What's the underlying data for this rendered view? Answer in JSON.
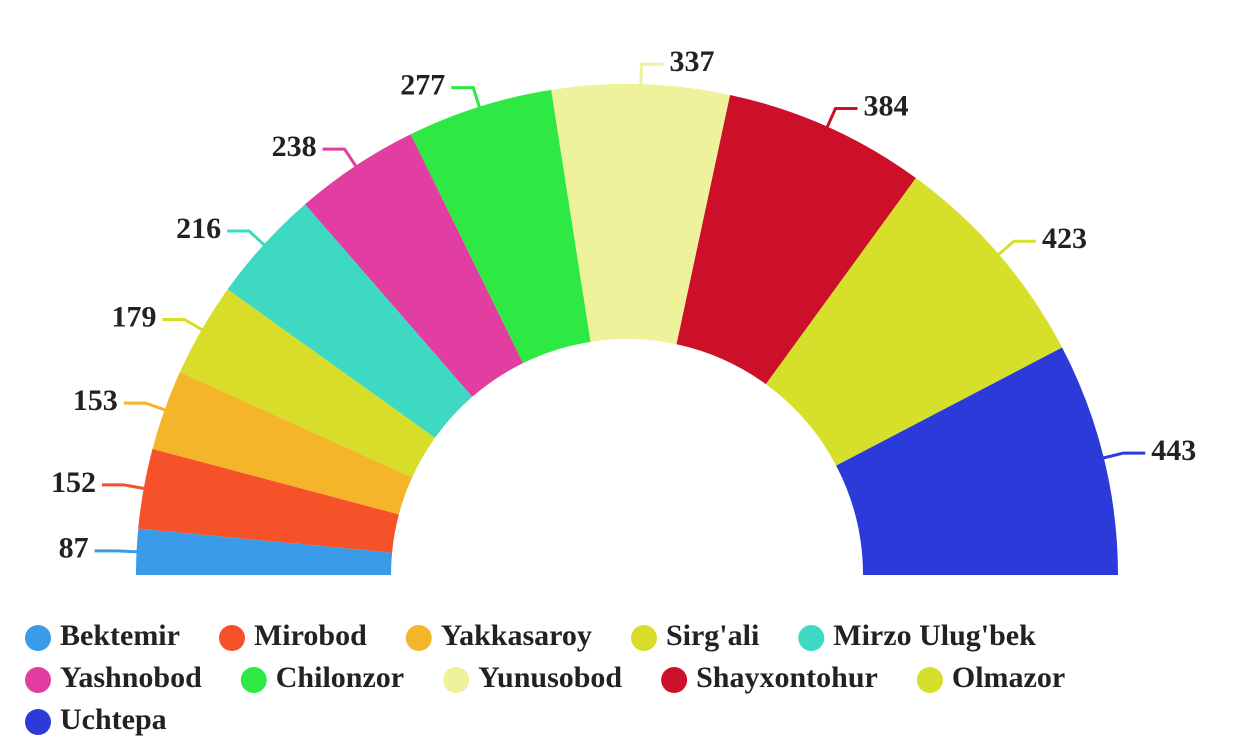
{
  "chart_data": {
    "type": "semi-donut",
    "categories": [
      "Bektemir",
      "Mirobod",
      "Yakkasaroy",
      "Sirg'ali",
      "Mirzo Ulug'bek",
      "Yashnobod",
      "Chilonzor",
      "Yunusobod",
      "Shayxontohur",
      "Olmazor",
      "Uchtepa"
    ],
    "values": [
      87,
      152,
      153,
      179,
      216,
      238,
      277,
      337,
      384,
      423,
      443
    ],
    "colors": [
      "#3a9be8",
      "#f5522a",
      "#f5b52a",
      "#d8dd2a",
      "#3dd9c3",
      "#e23da0",
      "#2ee843",
      "#eef29a",
      "#cc1029",
      "#d6df2a",
      "#2b3ad8"
    ],
    "legend": "bottom"
  }
}
